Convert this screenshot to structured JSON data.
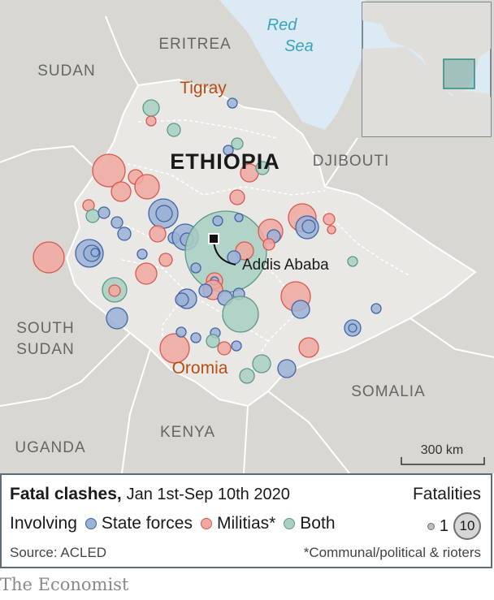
{
  "map": {
    "countries": {
      "eritrea": "ERITREA",
      "sudan": "SUDAN",
      "ethiopia": "ETHIOPIA",
      "djibouti": "DJIBOUTI",
      "south_sudan_1": "SOUTH",
      "south_sudan_2": "SUDAN",
      "somalia": "SOMALIA",
      "kenya": "KENYA",
      "uganda": "UGANDA"
    },
    "sea": {
      "line1": "Red",
      "line2": "Sea"
    },
    "regions": {
      "tigray": "Tigray",
      "oromia": "Oromia"
    },
    "capital": "Addis Ababa",
    "scale_label": "300 km",
    "colors": {
      "land": "#d9d7d2",
      "ethiopia": "#e9e8e4",
      "sea": "#dbeaf3",
      "border": "#ffffff",
      "state_fill": "#9bb2d6",
      "state_stroke": "#3f64a8",
      "militia_fill": "#f0a8a0",
      "militia_stroke": "#d9584f",
      "both_fill": "#a8cfc2",
      "both_stroke": "#5b9a86",
      "region_label": "#b84d12"
    }
  },
  "legend": {
    "title": "Fatal clashes,",
    "date_range": "Jan 1st-Sep 10th 2020",
    "involving": "Involving",
    "state": "State forces",
    "militias": "Militias*",
    "both": "Both",
    "fatalities_title": "Fatalities",
    "small_value": "1",
    "big_value": "10",
    "source": "Source: ACLED",
    "footnote": "*Communal/political & rioters"
  },
  "brand": "The Economist"
}
